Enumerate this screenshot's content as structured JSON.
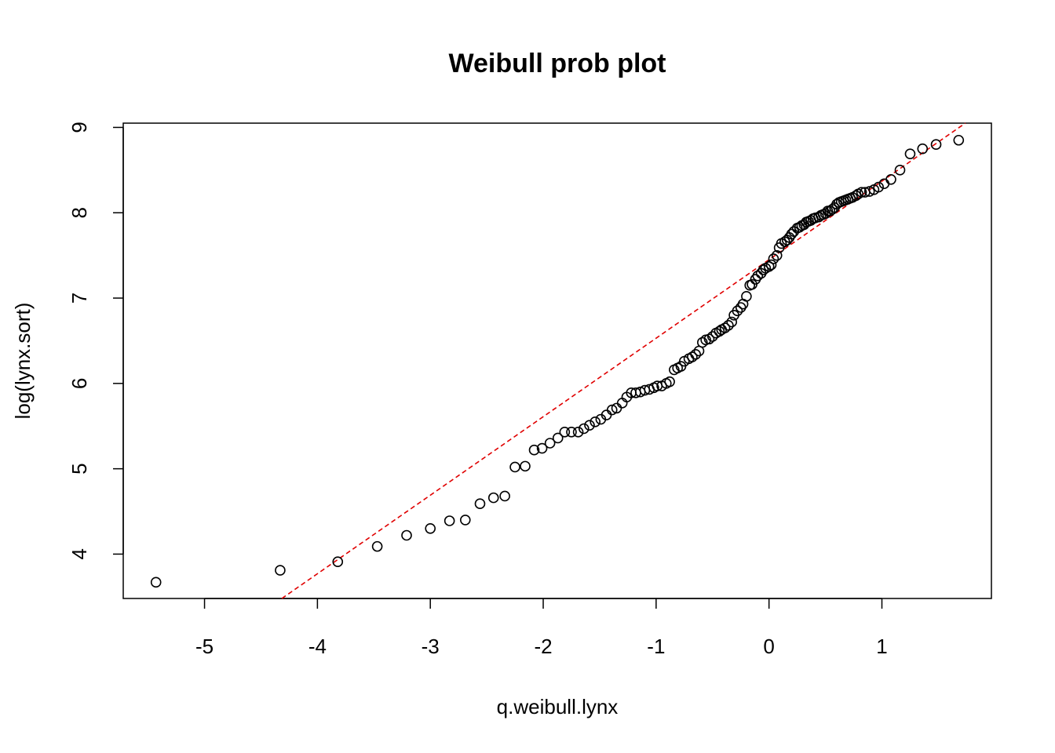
{
  "chart_data": {
    "type": "scatter",
    "title": "Weibull prob plot",
    "xlabel": "q.weibull.lynx",
    "ylabel": "log(lynx.sort)",
    "xlim": [
      -5.72,
      1.97
    ],
    "ylim": [
      3.48,
      9.05
    ],
    "xticks": [
      -5,
      -4,
      -3,
      -2,
      -1,
      0,
      1
    ],
    "yticks": [
      4,
      5,
      6,
      7,
      8,
      9
    ],
    "grid": false,
    "legend": "none",
    "point_color": "#000000",
    "fit_line": {
      "color": "#e00000",
      "style": "dashed",
      "intercept": 7.45,
      "slope": 0.92
    },
    "points": {
      "x": [
        -5.43,
        -4.33,
        -3.82,
        -3.47,
        -3.21,
        -3.0,
        -2.83,
        -2.69,
        -2.56,
        -2.44,
        -2.34,
        -2.25,
        -2.16,
        -2.08,
        -2.01,
        -1.94,
        -1.87,
        -1.81,
        -1.75,
        -1.69,
        -1.64,
        -1.59,
        -1.54,
        -1.49,
        -1.44,
        -1.39,
        -1.35,
        -1.3,
        -1.26,
        -1.22,
        -1.18,
        -1.14,
        -1.1,
        -1.06,
        -1.02,
        -0.99,
        -0.95,
        -0.91,
        -0.88,
        -0.84,
        -0.81,
        -0.78,
        -0.75,
        -0.71,
        -0.68,
        -0.65,
        -0.62,
        -0.59,
        -0.56,
        -0.53,
        -0.5,
        -0.47,
        -0.44,
        -0.42,
        -0.39,
        -0.36,
        -0.33,
        -0.31,
        -0.28,
        -0.25,
        -0.23,
        -0.2,
        -0.17,
        -0.15,
        -0.12,
        -0.1,
        -0.07,
        -0.05,
        -0.03,
        0.0,
        0.02,
        0.04,
        0.07,
        0.09,
        0.11,
        0.14,
        0.16,
        0.18,
        0.2,
        0.22,
        0.25,
        0.27,
        0.29,
        0.31,
        0.33,
        0.35,
        0.37,
        0.39,
        0.41,
        0.44,
        0.46,
        0.48,
        0.5,
        0.52,
        0.54,
        0.56,
        0.58,
        0.6,
        0.62,
        0.64,
        0.66,
        0.68,
        0.7,
        0.72,
        0.74,
        0.77,
        0.79,
        0.82,
        0.85,
        0.89,
        0.93,
        0.97,
        1.02,
        1.08,
        1.16,
        1.25,
        1.36,
        1.48,
        1.68
      ],
      "y": [
        3.67,
        3.81,
        3.91,
        4.09,
        4.22,
        4.3,
        4.39,
        4.4,
        4.59,
        4.66,
        4.68,
        5.02,
        5.03,
        5.22,
        5.24,
        5.3,
        5.36,
        5.43,
        5.43,
        5.43,
        5.47,
        5.51,
        5.55,
        5.58,
        5.63,
        5.69,
        5.71,
        5.77,
        5.84,
        5.89,
        5.89,
        5.9,
        5.92,
        5.93,
        5.95,
        5.97,
        5.97,
        6.0,
        6.02,
        6.16,
        6.18,
        6.2,
        6.26,
        6.29,
        6.31,
        6.34,
        6.38,
        6.48,
        6.51,
        6.52,
        6.55,
        6.59,
        6.61,
        6.63,
        6.65,
        6.68,
        6.72,
        6.8,
        6.85,
        6.89,
        6.93,
        7.02,
        7.15,
        7.16,
        7.22,
        7.26,
        7.29,
        7.33,
        7.35,
        7.37,
        7.39,
        7.46,
        7.5,
        7.59,
        7.64,
        7.66,
        7.68,
        7.71,
        7.75,
        7.78,
        7.82,
        7.83,
        7.85,
        7.86,
        7.89,
        7.9,
        7.91,
        7.93,
        7.94,
        7.95,
        7.97,
        7.98,
        7.99,
        8.02,
        8.02,
        8.04,
        8.06,
        8.1,
        8.12,
        8.13,
        8.14,
        8.15,
        8.16,
        8.17,
        8.18,
        8.2,
        8.22,
        8.24,
        8.24,
        8.25,
        8.27,
        8.3,
        8.34,
        8.39,
        8.5,
        8.69,
        8.75,
        8.8,
        8.85
      ]
    }
  }
}
